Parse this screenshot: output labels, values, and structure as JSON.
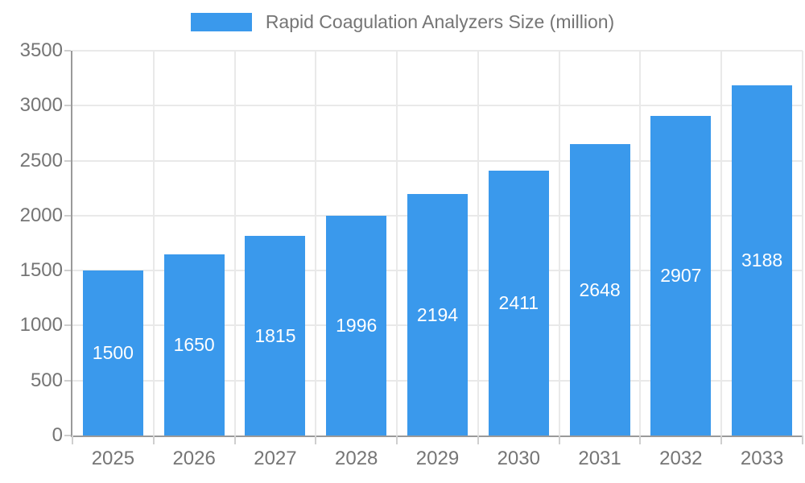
{
  "chart_data": {
    "type": "bar",
    "title": "Rapid Coagulation Analyzers Size (million)",
    "categories": [
      "2025",
      "2026",
      "2027",
      "2028",
      "2029",
      "2030",
      "2031",
      "2032",
      "2033"
    ],
    "values": [
      1500,
      1650,
      1815,
      1996,
      2194,
      2411,
      2648,
      2907,
      3188
    ],
    "xlabel": "",
    "ylabel": "",
    "ylim": [
      0,
      3500
    ],
    "ytick_step": 500,
    "yticks": [
      0,
      500,
      1000,
      1500,
      2000,
      2500,
      3000,
      3500
    ],
    "grid": "on",
    "legend_position": "top-center",
    "bar_color": "#3A99EC",
    "bar_label_color": "#ffffff",
    "axis_label_color": "#757575",
    "grid_color": "#e9e9e9",
    "axis_line_color": "#9a9a9a"
  },
  "legend": {
    "label": "Rapid Coagulation Analyzers Size (million)",
    "swatch_color": "#3A99EC"
  }
}
